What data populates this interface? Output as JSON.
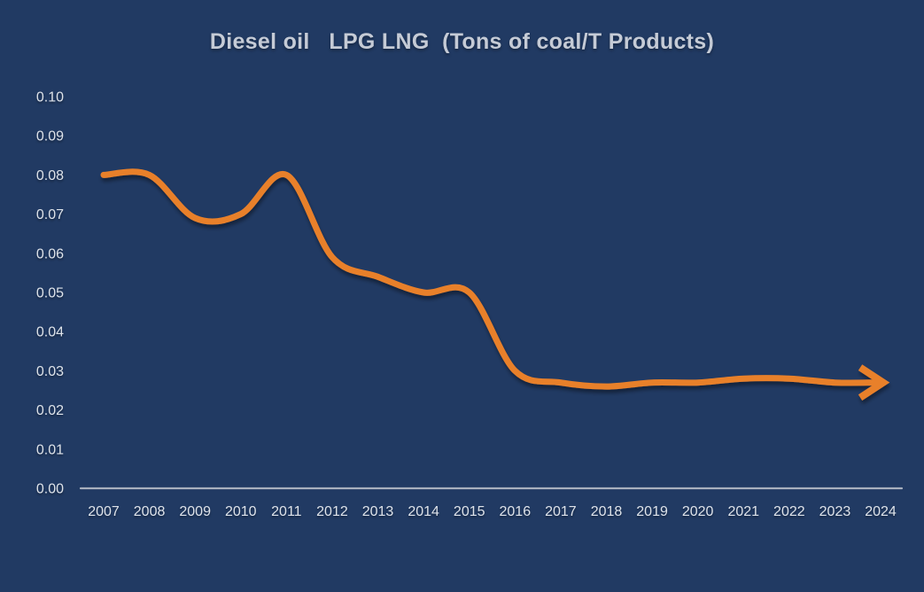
{
  "title": "Diesel oil   LPG LNG  (Tons of coal/T Products)",
  "colors": {
    "background": "#213A63",
    "line": "#E8802C",
    "axis_line": "#A8AFBD",
    "title_text": "#C5CBD6",
    "tick_text": "#DEE3EA"
  },
  "chart_data": {
    "type": "line",
    "title": "Diesel oil   LPG LNG  (Tons of coal/T Products)",
    "categories": [
      "2007",
      "2008",
      "2009",
      "2010",
      "2011",
      "2012",
      "2013",
      "2014",
      "2015",
      "2016",
      "2017",
      "2018",
      "2019",
      "2020",
      "2021",
      "2022",
      "2023",
      "2024"
    ],
    "series": [
      {
        "name": "Diesel oil LPG LNG",
        "values": [
          0.08,
          0.08,
          0.069,
          0.07,
          0.08,
          0.059,
          0.054,
          0.05,
          0.05,
          0.03,
          0.027,
          0.026,
          0.027,
          0.027,
          0.028,
          0.028,
          0.027,
          0.027
        ]
      }
    ],
    "xlabel": "",
    "ylabel": "",
    "ylim": [
      0.0,
      0.1
    ],
    "ytick_step": 0.01,
    "ytick_labels": [
      "0.00",
      "0.01",
      "0.02",
      "0.03",
      "0.04",
      "0.05",
      "0.06",
      "0.07",
      "0.08",
      "0.09",
      "0.10"
    ],
    "grid": false,
    "legend_position": "none",
    "line_smooth": true,
    "arrow_end": true
  }
}
